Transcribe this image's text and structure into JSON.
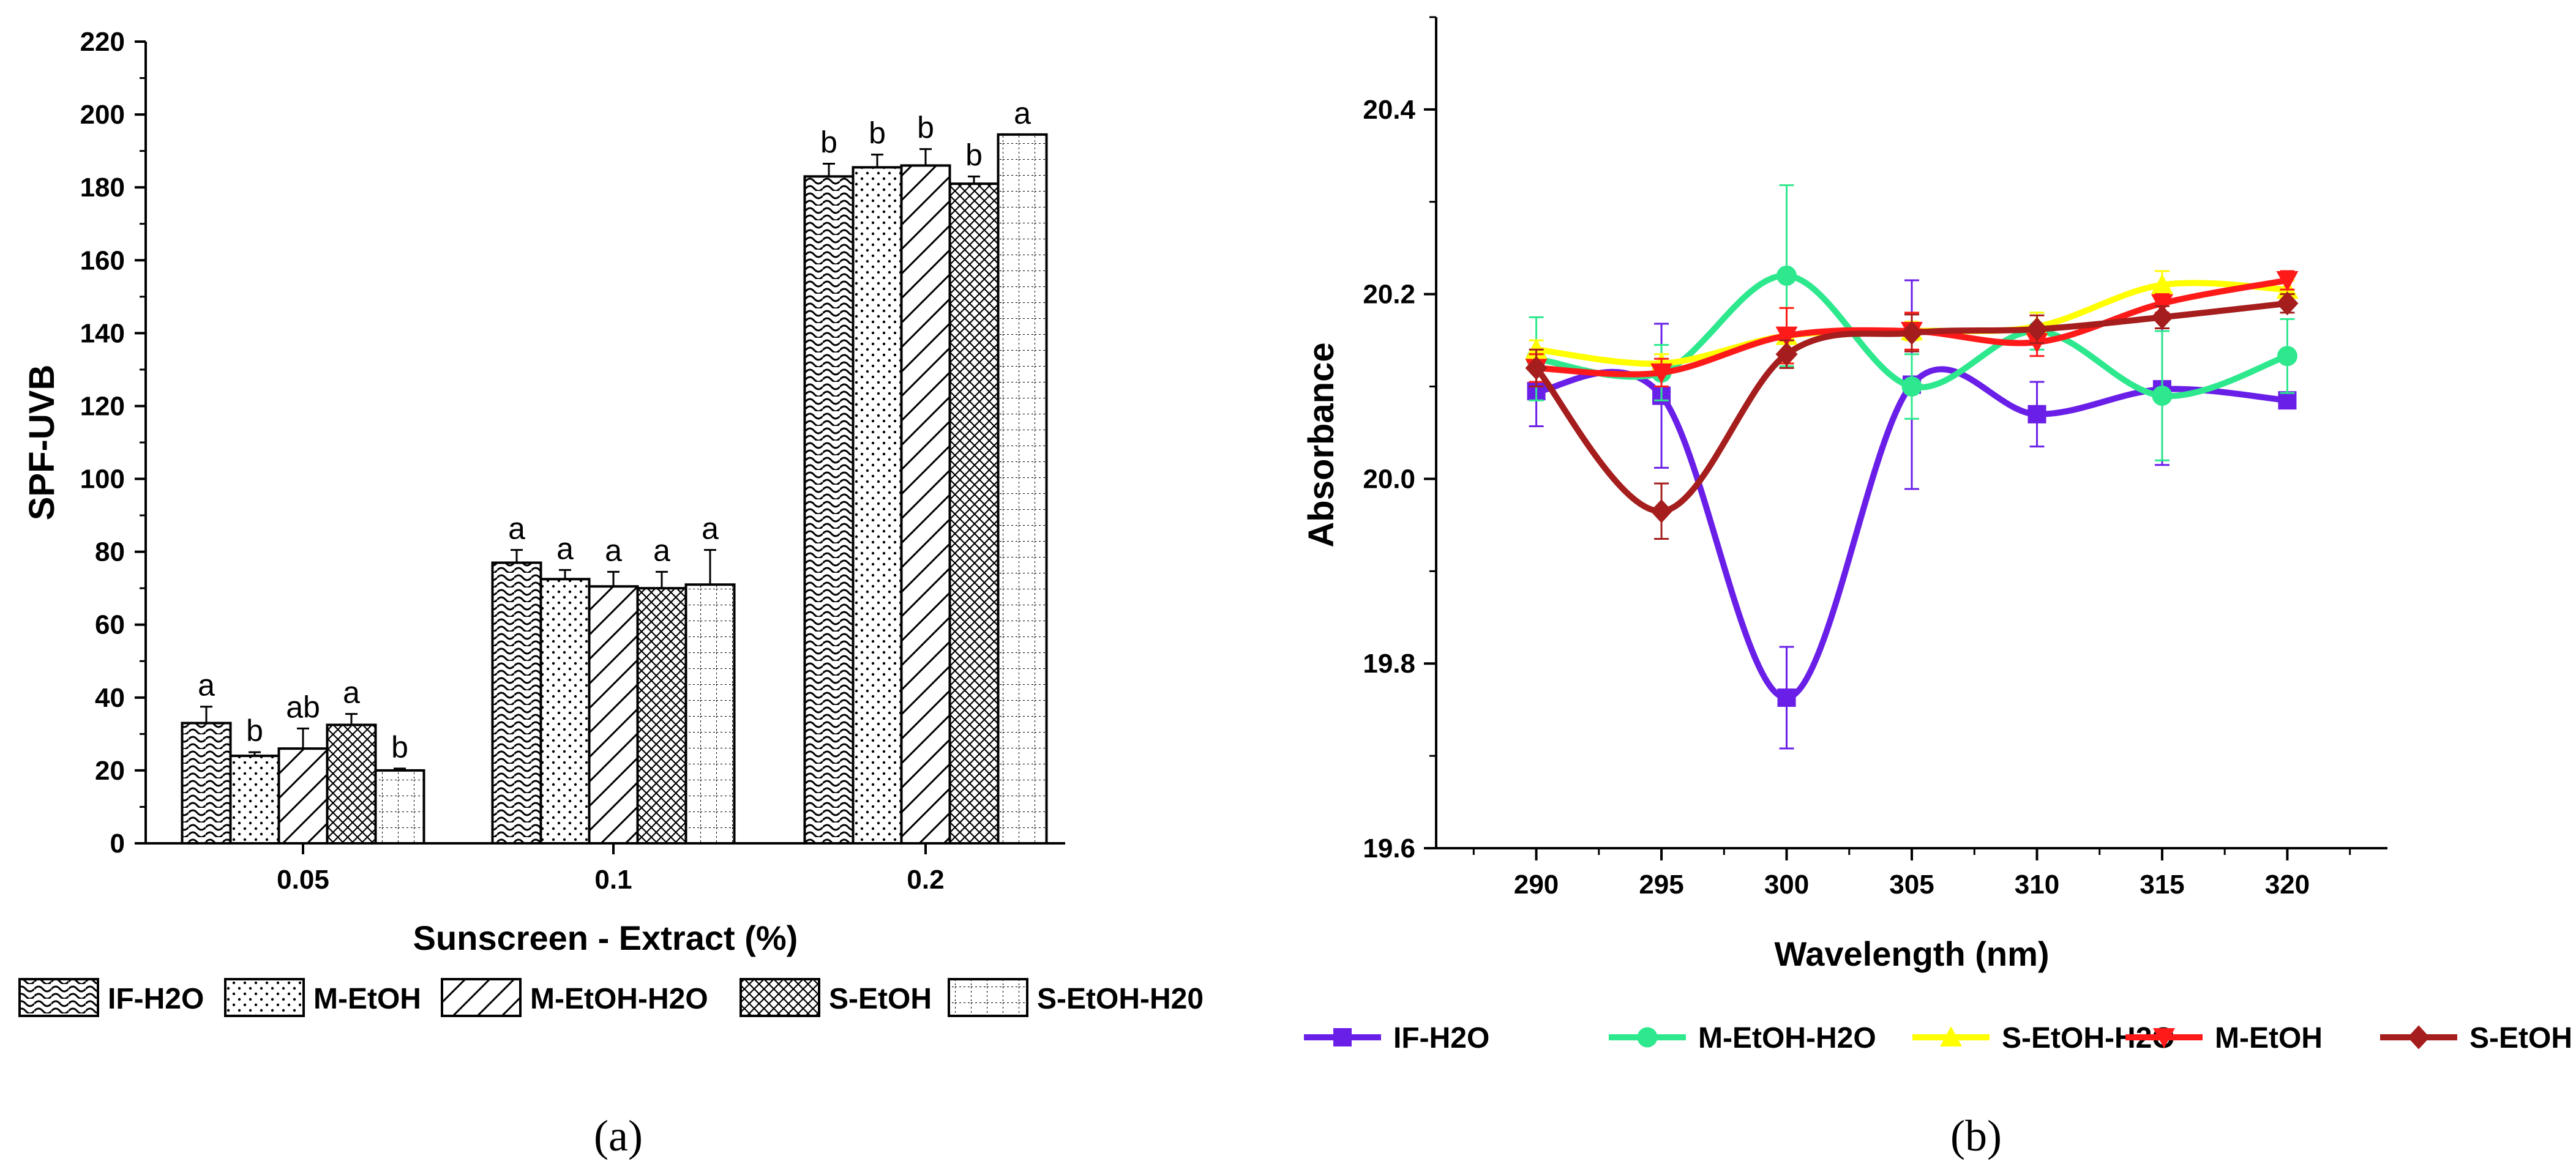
{
  "chart_data": [
    {
      "panel": "(a)",
      "type": "bar",
      "title": "",
      "xlabel": "Sunscreen - Extract (%)",
      "ylabel": "SPF-UVB",
      "ylim": [
        0,
        220
      ],
      "yticks": [
        0,
        20,
        40,
        60,
        80,
        100,
        120,
        140,
        160,
        180,
        200,
        220
      ],
      "categories": [
        "0.05",
        "0.1",
        "0.2"
      ],
      "legend_position": "bottom",
      "series": [
        {
          "name": "IF-H2O",
          "pattern": "wave",
          "values": [
            33,
            77,
            183
          ],
          "errors": [
            4.5,
            3.5,
            3.5
          ],
          "letters": [
            "a",
            "a",
            "b"
          ]
        },
        {
          "name": "M-EtOH",
          "pattern": "dots",
          "values": [
            24,
            72.5,
            185.5
          ],
          "errors": [
            1,
            2.5,
            3.5
          ],
          "letters": [
            "b",
            "a",
            "b"
          ]
        },
        {
          "name": "M-EtOH-H2O",
          "pattern": "diagonal",
          "values": [
            26,
            70.5,
            186
          ],
          "errors": [
            5.5,
            4,
            4.5
          ],
          "letters": [
            "ab",
            "a",
            "b"
          ]
        },
        {
          "name": "S-EtOH",
          "pattern": "crosshatch",
          "values": [
            32.5,
            70,
            181
          ],
          "errors": [
            3,
            4.5,
            2
          ],
          "letters": [
            "a",
            "a",
            "b"
          ]
        },
        {
          "name": "S-EtOH-H20",
          "pattern": "grid",
          "values": [
            20,
            71,
            194.5
          ],
          "errors": [
            0.5,
            9.5,
            0
          ],
          "letters": [
            "b",
            "a",
            "a"
          ]
        }
      ]
    },
    {
      "panel": "(b)",
      "type": "line",
      "title": "",
      "xlabel": "Wavelength (nm)",
      "ylabel": "Absorbance",
      "xlim": [
        286,
        324
      ],
      "ylim": [
        19.6,
        20.5
      ],
      "xticks": [
        290,
        295,
        300,
        305,
        310,
        315,
        320
      ],
      "yticks": [
        19.6,
        19.8,
        20.0,
        20.2,
        20.4
      ],
      "ytick_labels": [
        "19.6",
        "19.8",
        "20.0",
        "20.2",
        "20.4"
      ],
      "legend_position": "bottom",
      "x": [
        290,
        295,
        300,
        305,
        310,
        315,
        320
      ],
      "series": [
        {
          "name": "IF-H2O",
          "color": "#6a1fe8",
          "marker": "square",
          "values": [
            20.095,
            20.09,
            19.763,
            20.102,
            20.07,
            20.097,
            20.085
          ],
          "errors": [
            0.038,
            0.078,
            0.055,
            0.113,
            0.035,
            0.082,
            0.008
          ]
        },
        {
          "name": "M-EtOH-H2O",
          "color": "#2ee88e",
          "marker": "circle",
          "values": [
            20.13,
            20.115,
            20.22,
            20.1,
            20.16,
            20.09,
            20.133
          ],
          "errors": [
            0.045,
            0.03,
            0.098,
            0.035,
            0.02,
            0.07,
            0.04
          ]
        },
        {
          "name": "S-EtOH-H2O",
          "color": "#ffff00",
          "marker": "triangle-up",
          "values": [
            20.14,
            20.125,
            20.155,
            20.16,
            20.165,
            20.21,
            20.205
          ],
          "errors": [
            0.01,
            0.01,
            0.03,
            0.01,
            0.015,
            0.015,
            0.01
          ]
        },
        {
          "name": "M-EtOH",
          "color": "#ff1a1a",
          "marker": "triangle-down",
          "values": [
            20.12,
            20.115,
            20.155,
            20.16,
            20.148,
            20.19,
            20.215
          ],
          "errors": [
            0.015,
            0.015,
            0.03,
            0.02,
            0.015,
            0.01,
            0.01
          ]
        },
        {
          "name": "S-EtOH",
          "color": "#a51d1d",
          "marker": "diamond",
          "values": [
            20.12,
            19.965,
            20.135,
            20.158,
            20.162,
            20.175,
            20.19
          ],
          "errors": [
            0.02,
            0.03,
            0.015,
            0.02,
            0.015,
            0.012,
            0.01
          ]
        }
      ]
    }
  ],
  "captions": {
    "a": "(a)",
    "b": "(b)"
  }
}
